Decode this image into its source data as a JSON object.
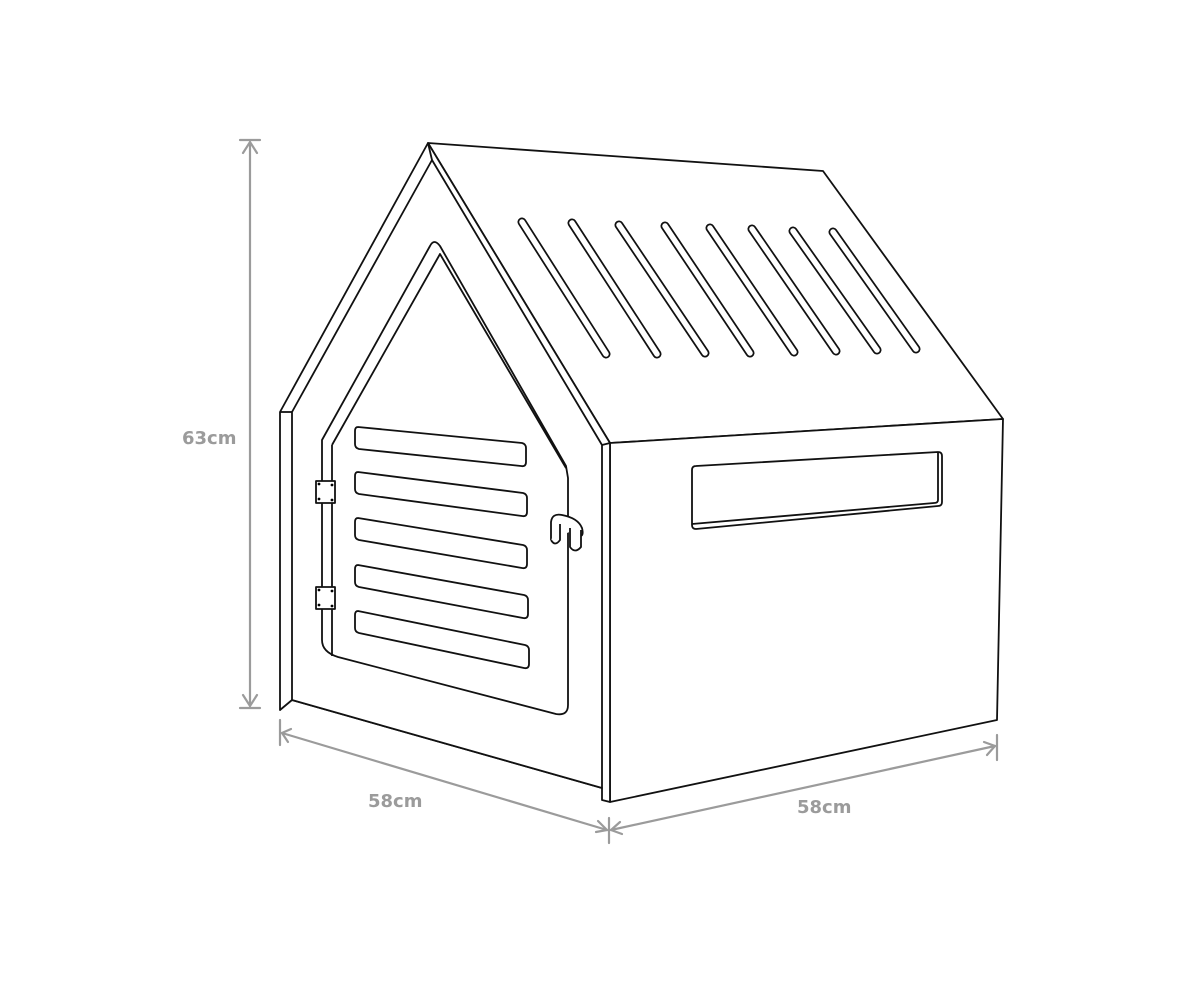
{
  "dimensions": {
    "height": "63cm",
    "front_width": "58cm",
    "side_depth": "58cm"
  },
  "colors": {
    "line": "#111111",
    "dimension": "#9b9b9b",
    "background": "#ffffff"
  },
  "icons": {
    "subject": "dog-house-line-drawing"
  }
}
